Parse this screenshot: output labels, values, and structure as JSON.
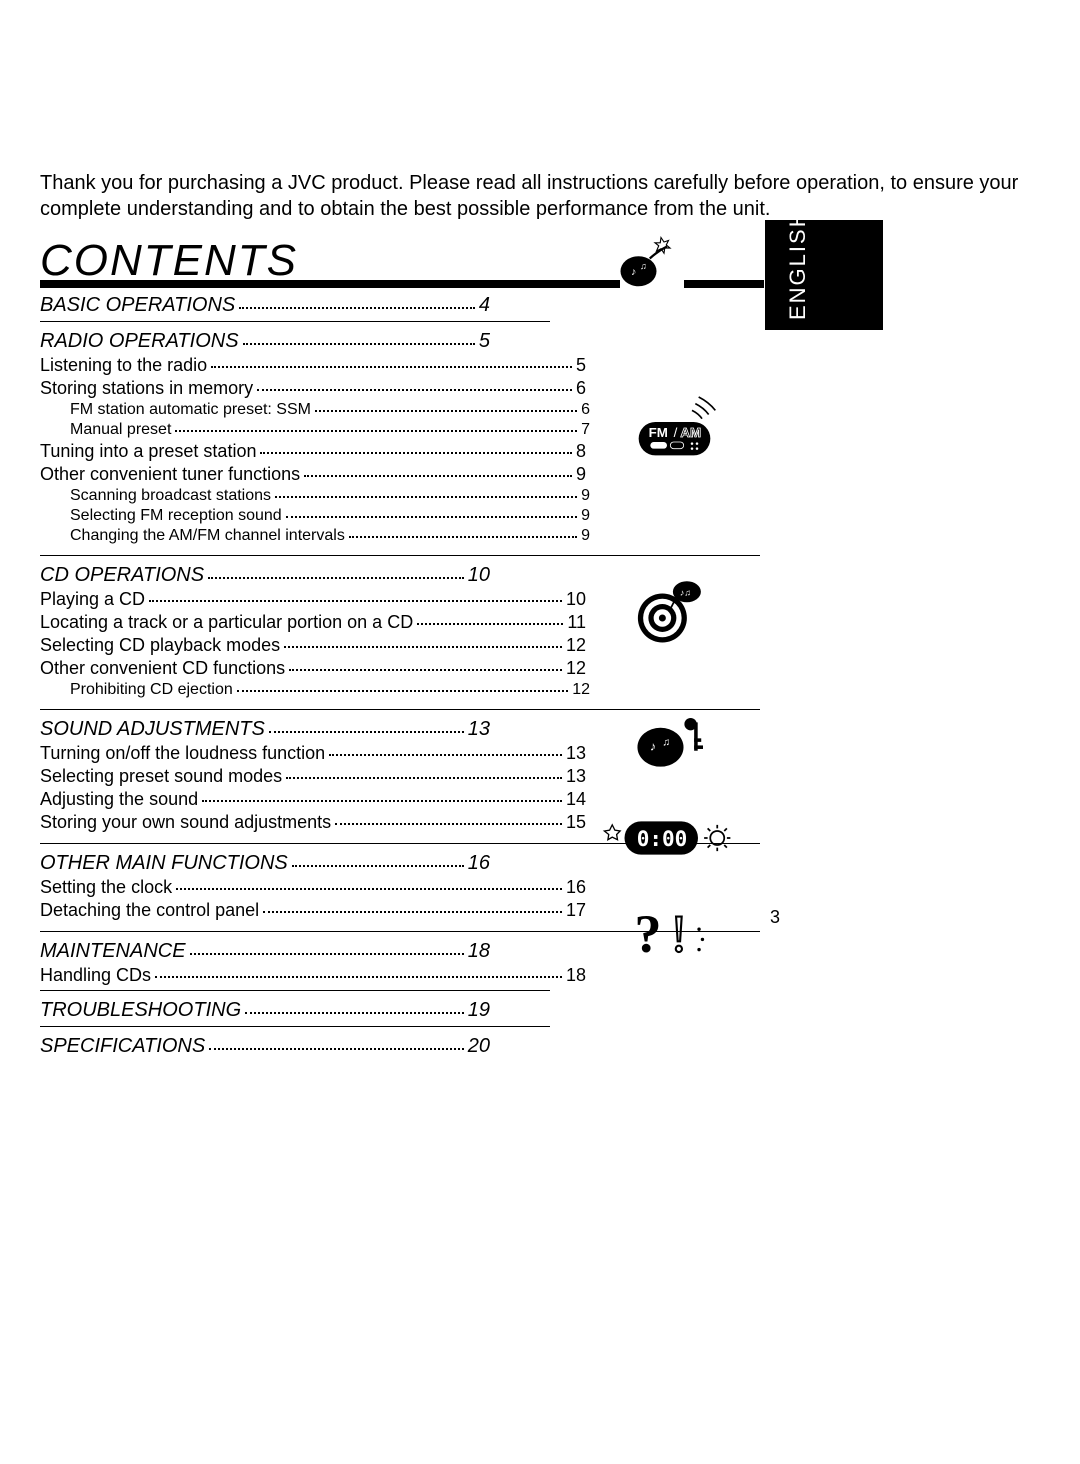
{
  "intro": "Thank you for purchasing a JVC product. Please read all instructions carefully before operation, to ensure your complete understanding and to obtain the best possible performance from the unit.",
  "language_tab": "ENGLISH",
  "title": "CONTENTS",
  "page_number": "3",
  "sections": [
    {
      "heading": "BASIC OPERATIONS",
      "page": "4",
      "icon": "music-bomb-sparkle",
      "items": [],
      "divider": "short"
    },
    {
      "heading": "RADIO OPERATIONS",
      "page": "5",
      "icon": "fm-am-radio",
      "items": [
        {
          "label": "Listening to the radio",
          "page": "5",
          "level": 1
        },
        {
          "label": "Storing stations in memory",
          "page": "6",
          "level": 1
        },
        {
          "label": "FM station automatic preset: SSM",
          "page": "6",
          "level": 2
        },
        {
          "label": "Manual preset",
          "page": "7",
          "level": 2
        },
        {
          "label": "Tuning into a preset station",
          "page": "8",
          "level": 1
        },
        {
          "label": "Other convenient tuner functions",
          "page": "9",
          "level": 1
        },
        {
          "label": "Scanning broadcast stations",
          "page": "9",
          "level": 2
        },
        {
          "label": "Selecting FM reception sound",
          "page": "9",
          "level": 2
        },
        {
          "label": "Changing the AM/FM channel intervals",
          "page": "9",
          "level": 2
        }
      ],
      "divider": "long"
    },
    {
      "heading": "CD OPERATIONS",
      "page": "10",
      "icon": "cd-target-notes",
      "items": [
        {
          "label": "Playing a CD",
          "page": "10",
          "level": 1
        },
        {
          "label": "Locating a track or a particular portion on a CD",
          "page": "11",
          "level": 1
        },
        {
          "label": "Selecting CD playback modes",
          "page": "12",
          "level": 1
        },
        {
          "label": "Other convenient CD functions",
          "page": "12",
          "level": 1
        },
        {
          "label": "Prohibiting CD ejection",
          "page": "12",
          "level": 2
        }
      ],
      "divider": "long"
    },
    {
      "heading": "SOUND ADJUSTMENTS",
      "page": "13",
      "icon": "music-bomb-key",
      "items": [
        {
          "label": "Turning on/off the loudness function",
          "page": "13",
          "level": 1
        },
        {
          "label": "Selecting preset sound modes",
          "page": "13",
          "level": 1
        },
        {
          "label": "Adjusting the sound",
          "page": "14",
          "level": 1
        },
        {
          "label": "Storing your own sound adjustments",
          "page": "15",
          "level": 1
        }
      ],
      "divider": "long"
    },
    {
      "heading": "OTHER MAIN FUNCTIONS",
      "page": "16",
      "icon": "clock-display",
      "items": [
        {
          "label": "Setting the clock",
          "page": "16",
          "level": 1
        },
        {
          "label": "Detaching the control panel",
          "page": "17",
          "level": 1
        }
      ],
      "divider": "long"
    },
    {
      "heading": "MAINTENANCE",
      "page": "18",
      "icon": "question-exclaim",
      "items": [
        {
          "label": "Handling CDs",
          "page": "18",
          "level": 1
        }
      ],
      "divider": "short"
    },
    {
      "heading": "TROUBLESHOOTING",
      "page": "19",
      "items": [],
      "divider": "short"
    },
    {
      "heading": "SPECIFICATIONS",
      "page": "20",
      "items": [],
      "divider": "none"
    }
  ],
  "colors": {
    "text": "#000000",
    "background": "#ffffff",
    "tab_bg": "#000000",
    "tab_text": "#ffffff"
  },
  "typography": {
    "intro_fontsize": 20,
    "title_fontsize": 44,
    "heading_fontsize": 20,
    "item_fontsize": 18,
    "subitem_fontsize": 16,
    "title_style": "italic",
    "heading_style": "italic"
  }
}
